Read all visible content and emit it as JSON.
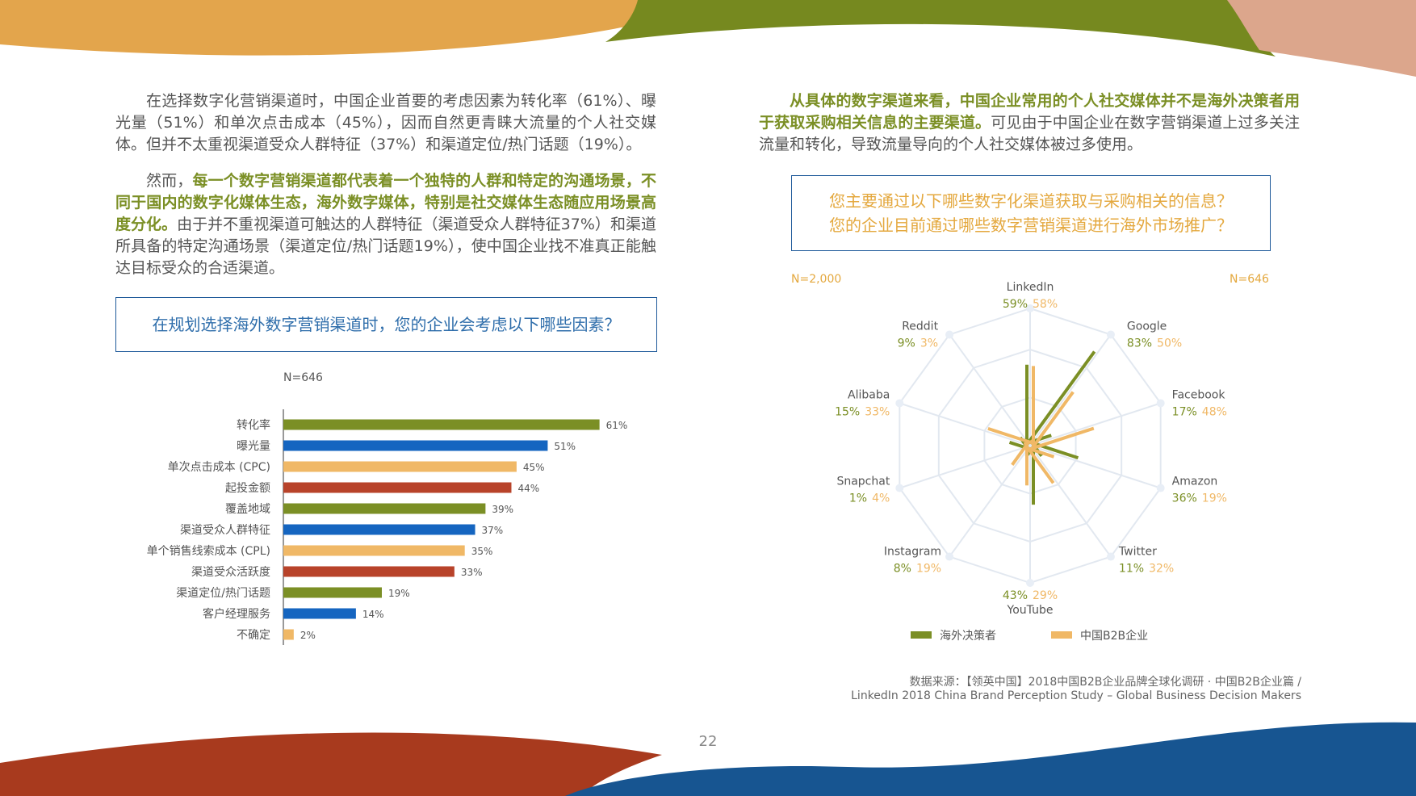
{
  "colors": {
    "olive": "#7b8f25",
    "blue": "#1565c0",
    "orange_light": "#f0b866",
    "red": "#b8432a",
    "question_blue": "#2f6eab",
    "question_orange": "#e4a83e",
    "frame_blue": "#1f5a9a"
  },
  "left": {
    "para1": "在选择数字化营销渠道时，中国企业首要的考虑因素为转化率（61%）、曝光量（51%）和单次点击成本（45%），因而自然更青睐大流量的个人社交媒体。但并不太重视渠道受众人群特征（37%）和渠道定位/热门话题（19%）。",
    "para2_prefix": "然而，",
    "para2_highlight": "每一个数字营销渠道都代表着一个独特的人群和特定的沟通场景，不同于国内的数字化媒体生态，海外数字媒体，特别是社交媒体生态随应用场景高度分化。",
    "para2_rest": "由于并不重视渠道可触达的人群特征（渠道受众人群特征37%）和渠道所具备的特定沟通场景（渠道定位/热门话题19%），使中国企业找不准真正能触达目标受众的合适渠道。",
    "question": "在规划选择海外数字营销渠道时，您的企业会考虑以下哪些因素？",
    "n_label": "N=646"
  },
  "right": {
    "para_highlight": "从具体的数字渠道来看，中国企业常用的个人社交媒体并不是海外决策者用于获取采购相关信息的主要渠道。",
    "para_rest": "可见由于中国企业在数字营销渠道上过多关注流量和转化，导致流量导向的个人社交媒体被过多使用。",
    "question_line1": "您主要通过以下哪些数字化渠道获取与采购相关的信息？",
    "question_line2": "您的企业目前通过哪些数字营销渠道进行海外市场推广？",
    "n_left": "N=2,000",
    "n_right": "N=646"
  },
  "source_line1": "数据来源：【领英中国】2018中国B2B企业品牌全球化调研 · 中国B2B企业篇 /",
  "source_line2": "LinkedIn 2018 China Brand Perception Study – Global Business Decision Makers",
  "page_number": "22",
  "chart_data": [
    {
      "type": "bar",
      "orientation": "horizontal",
      "categories": [
        "转化率",
        "曝光量",
        "单次点击成本 (CPC)",
        "起投金额",
        "覆盖地域",
        "渠道受众人群特征",
        "单个销售线索成本 (CPL)",
        "渠道受众活跃度",
        "渠道定位/热门话题",
        "客户经理服务",
        "不确定"
      ],
      "values": [
        61,
        51,
        45,
        44,
        39,
        37,
        35,
        33,
        19,
        14,
        2
      ],
      "value_labels": [
        "61%",
        "51%",
        "45%",
        "44%",
        "39%",
        "37%",
        "35%",
        "33%",
        "19%",
        "14%",
        "2%"
      ],
      "bar_colors": [
        "#7b8f25",
        "#1565c0",
        "#f0b866",
        "#b8432a",
        "#7b8f25",
        "#1565c0",
        "#f0b866",
        "#b8432a",
        "#7b8f25",
        "#1565c0",
        "#f0b866"
      ],
      "xlim": [
        0,
        100
      ],
      "grid": false,
      "title": ""
    },
    {
      "type": "radar",
      "axes": [
        "LinkedIn",
        "Google",
        "Facebook",
        "Amazon",
        "Twitter",
        "YouTube",
        "Instagram",
        "Snapchat",
        "Alibaba",
        "Reddit"
      ],
      "series": [
        {
          "name": "海外决策者",
          "color": "#7b8f25",
          "values": [
            59,
            83,
            17,
            36,
            11,
            43,
            8,
            1,
            15,
            9
          ],
          "labels": [
            "59%",
            "83%",
            "17%",
            "36%",
            "11%",
            "43%",
            "8%",
            "1%",
            "15%",
            "9%"
          ]
        },
        {
          "name": "中国B2B企业",
          "color": "#f0b866",
          "values": [
            58,
            50,
            48,
            19,
            32,
            29,
            19,
            4,
            33,
            3
          ],
          "labels": [
            "58%",
            "50%",
            "48%",
            "19%",
            "32%",
            "29%",
            "19%",
            "4%",
            "33%",
            "3%"
          ]
        }
      ],
      "range": [
        0,
        100
      ],
      "legend_position": "bottom"
    }
  ]
}
